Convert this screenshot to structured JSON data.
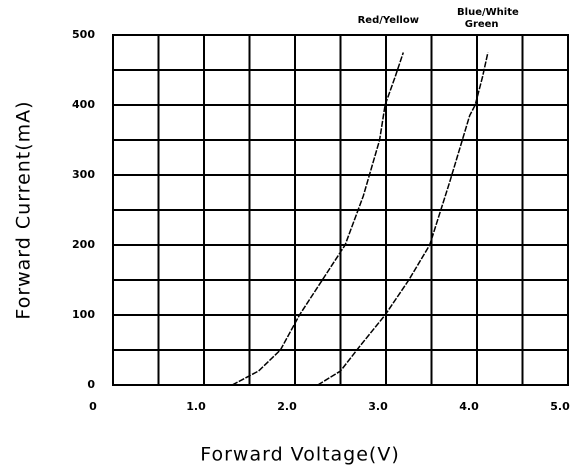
{
  "chart_data": {
    "type": "line",
    "xlabel": "Forward Voltage(V)",
    "ylabel": "Forward Current(mA)",
    "xlim": [
      0,
      5
    ],
    "ylim": [
      0,
      500
    ],
    "xticks": [
      0,
      {
        "value": 1,
        "label": "1.0"
      },
      {
        "value": 2,
        "label": "2.0"
      },
      {
        "value": 3,
        "label": "3.0"
      },
      {
        "value": 4,
        "label": "4.0"
      },
      {
        "value": 5,
        "label": "5.0"
      }
    ],
    "yticks": [
      0,
      100,
      200,
      300,
      400,
      500
    ],
    "grid": true,
    "series": [
      {
        "name": "Red/Yellow",
        "color": "#000000",
        "x": [
          1.31,
          1.6,
          1.84,
          2.05,
          2.3,
          2.55,
          2.75,
          2.93,
          2.99,
          3.1,
          3.19
        ],
        "values": [
          0,
          20,
          50,
          100,
          150,
          200,
          270,
          350,
          400,
          440,
          475
        ]
      },
      {
        "name": "Blue/White Green",
        "color": "#000000",
        "x": [
          2.25,
          2.5,
          2.71,
          2.99,
          3.25,
          3.48,
          3.7,
          3.92,
          3.98,
          4.06,
          4.12
        ],
        "values": [
          0,
          20,
          55,
          100,
          150,
          200,
          290,
          385,
          400,
          440,
          475
        ]
      }
    ]
  }
}
